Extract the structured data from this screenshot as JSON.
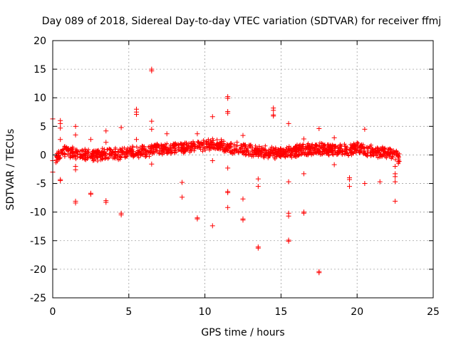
{
  "chart_data": {
    "type": "scatter",
    "title": "Day 089 of 2018, Sidereal Day-to-day VTEC variation (SDTVAR) for receiver ffmj",
    "xlabel": "GPS time / hours",
    "ylabel": "SDTVAR / TECUs",
    "xlim": [
      0,
      25
    ],
    "ylim": [
      -25,
      20
    ],
    "xticks": [
      0,
      5,
      10,
      15,
      20,
      25
    ],
    "yticks": [
      -25,
      -20,
      -15,
      -10,
      -5,
      0,
      5,
      10,
      15,
      20
    ],
    "xtick_labels": [
      "0",
      "5",
      "10",
      "15",
      "20",
      "25"
    ],
    "ytick_labels": [
      "-25",
      "-20",
      "-15",
      "-10",
      "-5",
      "0",
      "5",
      "10",
      "15",
      "20"
    ],
    "grid": true,
    "marker": "+",
    "color": "#ff0000",
    "band": {
      "description": "dense band of points near zero",
      "x": [
        0.2,
        0.6,
        1.0,
        1.5,
        2.0,
        2.5,
        3.0,
        3.5,
        4.0,
        4.5,
        5.0,
        5.5,
        6.0,
        6.5,
        7.0,
        7.5,
        8.0,
        8.5,
        9.0,
        9.5,
        10.0,
        10.5,
        11.0,
        11.5,
        12.0,
        12.5,
        13.0,
        13.5,
        14.0,
        14.5,
        15.0,
        15.5,
        16.0,
        16.5,
        17.0,
        17.5,
        18.0,
        18.5,
        19.0,
        19.5,
        20.0,
        20.5,
        21.0,
        21.5,
        22.0,
        22.5,
        22.8
      ],
      "center": [
        -0.3,
        0.5,
        0.6,
        0.3,
        0.2,
        0.0,
        0.0,
        0.1,
        0.2,
        0.3,
        0.4,
        0.5,
        0.6,
        0.8,
        1.0,
        1.2,
        1.3,
        1.2,
        1.4,
        1.5,
        1.7,
        1.8,
        1.6,
        1.4,
        1.2,
        1.0,
        0.8,
        0.6,
        0.5,
        0.4,
        0.3,
        0.5,
        0.7,
        0.9,
        1.0,
        1.1,
        1.0,
        0.9,
        0.8,
        1.0,
        1.2,
        0.9,
        0.6,
        0.5,
        0.3,
        0.1,
        -0.8
      ]
    },
    "points": [
      [
        0.0,
        6.3
      ],
      [
        0.0,
        -1.0
      ],
      [
        0.0,
        -3.0
      ],
      [
        0.5,
        6.0
      ],
      [
        0.5,
        5.5
      ],
      [
        0.5,
        4.7
      ],
      [
        0.5,
        -4.5
      ],
      [
        0.5,
        -4.3
      ],
      [
        0.5,
        2.7
      ],
      [
        1.5,
        5.0
      ],
      [
        1.5,
        3.5
      ],
      [
        1.5,
        -2.0
      ],
      [
        1.5,
        -2.6
      ],
      [
        1.5,
        -8.1
      ],
      [
        1.5,
        -8.4
      ],
      [
        2.5,
        2.7
      ],
      [
        2.5,
        -6.7
      ],
      [
        2.5,
        -6.9
      ],
      [
        3.5,
        4.2
      ],
      [
        3.5,
        2.2
      ],
      [
        3.5,
        -8.0
      ],
      [
        3.5,
        -8.3
      ],
      [
        4.5,
        4.8
      ],
      [
        4.5,
        -10.2
      ],
      [
        4.5,
        -10.5
      ],
      [
        5.5,
        8.0
      ],
      [
        5.5,
        7.5
      ],
      [
        5.5,
        7.1
      ],
      [
        5.5,
        2.7
      ],
      [
        6.5,
        15.0
      ],
      [
        6.5,
        14.7
      ],
      [
        6.5,
        5.9
      ],
      [
        6.5,
        4.5
      ],
      [
        6.5,
        -1.6
      ],
      [
        7.5,
        3.7
      ],
      [
        8.5,
        -4.8
      ],
      [
        8.5,
        -7.4
      ],
      [
        9.5,
        3.7
      ],
      [
        9.5,
        -11.0
      ],
      [
        9.5,
        -11.2
      ],
      [
        10.5,
        6.7
      ],
      [
        10.5,
        -1.0
      ],
      [
        10.5,
        -12.4
      ],
      [
        11.5,
        10.2
      ],
      [
        11.5,
        9.9
      ],
      [
        11.5,
        7.6
      ],
      [
        11.5,
        7.3
      ],
      [
        11.5,
        -2.3
      ],
      [
        11.5,
        -6.4
      ],
      [
        11.5,
        -6.6
      ],
      [
        11.5,
        -9.2
      ],
      [
        12.5,
        3.4
      ],
      [
        12.5,
        -7.7
      ],
      [
        12.5,
        -11.2
      ],
      [
        12.5,
        -11.4
      ],
      [
        13.5,
        -4.2
      ],
      [
        13.5,
        -5.5
      ],
      [
        13.5,
        -16.1
      ],
      [
        13.5,
        -16.3
      ],
      [
        14.5,
        8.2
      ],
      [
        14.5,
        7.8
      ],
      [
        14.5,
        7.0
      ],
      [
        14.5,
        6.8
      ],
      [
        15.5,
        5.5
      ],
      [
        15.5,
        -4.7
      ],
      [
        15.5,
        -10.2
      ],
      [
        15.5,
        -10.7
      ],
      [
        15.5,
        -14.9
      ],
      [
        15.5,
        -15.1
      ],
      [
        16.5,
        2.8
      ],
      [
        16.5,
        -3.3
      ],
      [
        16.5,
        -10.0
      ],
      [
        16.5,
        -10.2
      ],
      [
        17.5,
        4.6
      ],
      [
        17.5,
        -20.4
      ],
      [
        17.5,
        -20.6
      ],
      [
        18.5,
        3.0
      ],
      [
        18.5,
        -1.7
      ],
      [
        19.5,
        -4.0
      ],
      [
        19.5,
        -4.3
      ],
      [
        19.5,
        -5.5
      ],
      [
        20.5,
        4.5
      ],
      [
        20.5,
        -5.0
      ],
      [
        21.5,
        -4.7
      ],
      [
        22.5,
        -2.0
      ],
      [
        22.5,
        -3.3
      ],
      [
        22.5,
        -3.8
      ],
      [
        22.5,
        -4.7
      ],
      [
        22.5,
        -8.1
      ]
    ]
  }
}
